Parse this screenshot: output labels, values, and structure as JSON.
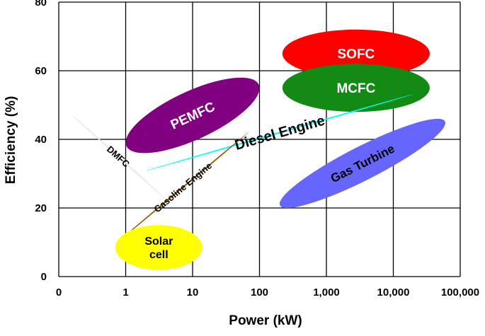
{
  "chart_data": {
    "type": "scatter",
    "title": "",
    "xlabel": "Power (kW)",
    "ylabel": "Efficiency (%)",
    "x_scale": "log",
    "xlim": [
      0.1,
      100000
    ],
    "ylim": [
      0,
      80
    ],
    "x_ticks": [
      "0",
      "1",
      "10",
      "100",
      "1,000",
      "10,000",
      "100,000"
    ],
    "y_ticks": [
      "0",
      "20",
      "40",
      "60",
      "80"
    ],
    "grid": true,
    "legend": "none",
    "regions": [
      {
        "label": "SOFC",
        "x_range": [
          220,
          35000
        ],
        "y_range": [
          58,
          72
        ],
        "angle_deg": 0,
        "color": "#ff0000",
        "text_color": "#ffffff"
      },
      {
        "label": "MCFC",
        "x_range": [
          220,
          35000
        ],
        "y_range": [
          48,
          62
        ],
        "angle_deg": 0,
        "color": "#138a13",
        "text_color": "#ffffff"
      },
      {
        "label": "PEMFC",
        "x_range": [
          1,
          100
        ],
        "y_range": [
          36,
          58
        ],
        "angle_deg": -25,
        "color": "#800080",
        "text_color": "#ffffff"
      },
      {
        "label": "Diesel Engine",
        "x_range": [
          2,
          20000
        ],
        "y_range": [
          32,
          52
        ],
        "angle_deg": -16,
        "color": "#00ffff",
        "text_color": "#000000"
      },
      {
        "label": "DMFC",
        "x_range": [
          0.2,
          3
        ],
        "y_range": [
          26,
          44
        ],
        "angle_deg": 42,
        "color": "#e6e6e6",
        "text_color": "#000000"
      },
      {
        "label": "Gasoline Engine",
        "x_range": [
          0.85,
          60
        ],
        "y_range": [
          12,
          40
        ],
        "angle_deg": -40,
        "color": "#8b5a00",
        "text_color": "#000000"
      },
      {
        "label": "Gas Turbine",
        "x_range": [
          200,
          60000
        ],
        "y_range": [
          20,
          46
        ],
        "angle_deg": -27,
        "color": "#6666ff",
        "text_color": "#000000"
      },
      {
        "label": "Solar cell",
        "x_range": [
          0.7,
          14
        ],
        "y_range": [
          2,
          15
        ],
        "angle_deg": 0,
        "color": "#ffff00",
        "text_color": "#000000"
      }
    ]
  }
}
